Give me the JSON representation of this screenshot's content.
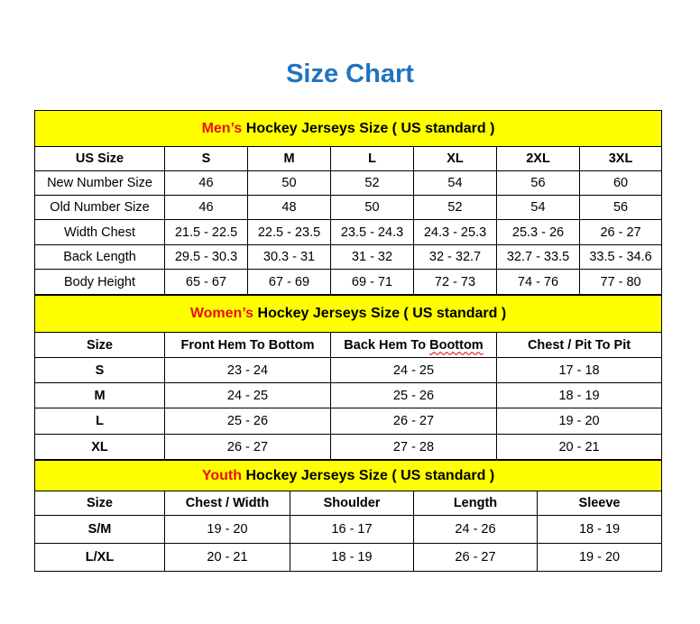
{
  "title": "Size Chart",
  "colors": {
    "title": "#1f74bf",
    "band": "#ffff00",
    "highlight": "#e81010"
  },
  "men": {
    "band_highlight": "Men’s",
    "band_rest": " Hockey Jerseys Size ( US standard )",
    "headers": [
      "US Size",
      "S",
      "M",
      "L",
      "XL",
      "2XL",
      "3XL"
    ],
    "rows": [
      [
        "New Number Size",
        "46",
        "50",
        "52",
        "54",
        "56",
        "60"
      ],
      [
        "Old Number Size",
        "46",
        "48",
        "50",
        "52",
        "54",
        "56"
      ],
      [
        "Width Chest",
        "21.5 - 22.5",
        "22.5 - 23.5",
        "23.5 - 24.3",
        "24.3 - 25.3",
        "25.3 - 26",
        "26 - 27"
      ],
      [
        "Back Length",
        "29.5 - 30.3",
        "30.3 - 31",
        "31 - 32",
        "32 - 32.7",
        "32.7 - 33.5",
        "33.5 - 34.6"
      ],
      [
        "Body Height",
        "65 - 67",
        "67 - 69",
        "69 - 71",
        "72 - 73",
        "74 - 76",
        "77 - 80"
      ]
    ]
  },
  "women": {
    "band_highlight": "Women’s",
    "band_rest": " Hockey Jerseys Size ( US standard )",
    "headers": [
      "Size",
      "Front Hem To Bottom",
      "Back Hem To ",
      "Chest / Pit To Pit"
    ],
    "header_misspelled_word": "Boottom",
    "rows": [
      [
        "S",
        "23 - 24",
        "24 - 25",
        "17 - 18"
      ],
      [
        "M",
        "24 - 25",
        "25 - 26",
        "18 - 19"
      ],
      [
        "L",
        "25 - 26",
        "26 - 27",
        "19 - 20"
      ],
      [
        "XL",
        "26 - 27",
        "27 - 28",
        "20 - 21"
      ]
    ]
  },
  "youth": {
    "band_highlight": "Youth",
    "band_rest": " Hockey Jerseys Size ( US standard )",
    "headers": [
      "Size",
      "Chest / Width",
      "Shoulder",
      "Length",
      "Sleeve"
    ],
    "rows": [
      [
        "S/M",
        "19 - 20",
        "16 - 17",
        "24 - 26",
        "18 - 19"
      ],
      [
        "L/XL",
        "20 - 21",
        "18 - 19",
        "26 - 27",
        "19 - 20"
      ]
    ]
  }
}
